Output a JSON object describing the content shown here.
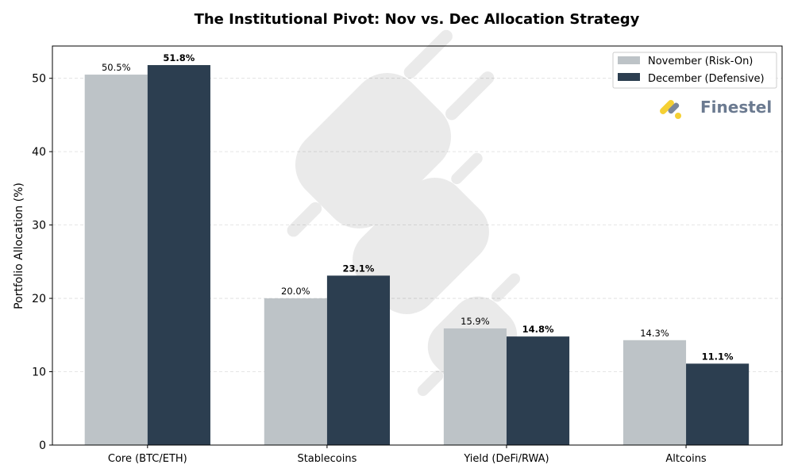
{
  "chart_data": {
    "type": "bar",
    "title": "The Institutional Pivot: Nov vs. Dec Allocation Strategy",
    "xlabel": "",
    "ylabel": "Portfolio Allocation (%)",
    "categories": [
      "Core (BTC/ETH)",
      "Stablecoins",
      "Yield (DeFi/RWA)",
      "Altcoins"
    ],
    "series": [
      {
        "name": "November (Risk-On)",
        "values": [
          50.5,
          20.0,
          15.9,
          14.3
        ],
        "color": "#bdc3c7",
        "labels": [
          "50.5%",
          "20.0%",
          "15.9%",
          "14.3%"
        ],
        "label_bold": false
      },
      {
        "name": "December (Defensive)",
        "values": [
          51.8,
          23.1,
          14.8,
          11.1
        ],
        "color": "#2c3e50",
        "labels": [
          "51.8%",
          "23.1%",
          "14.8%",
          "11.1%"
        ],
        "label_bold": true
      }
    ],
    "ylim": [
      0,
      54.4
    ],
    "yticks": [
      0,
      10,
      20,
      30,
      40,
      50
    ],
    "grid": "horizontal dashed",
    "legend": "top-right"
  },
  "logo": {
    "text": "Finestel",
    "color": "#6b7a90",
    "accent": "#f5d033"
  },
  "watermark": {
    "icon": "plug-icon"
  }
}
